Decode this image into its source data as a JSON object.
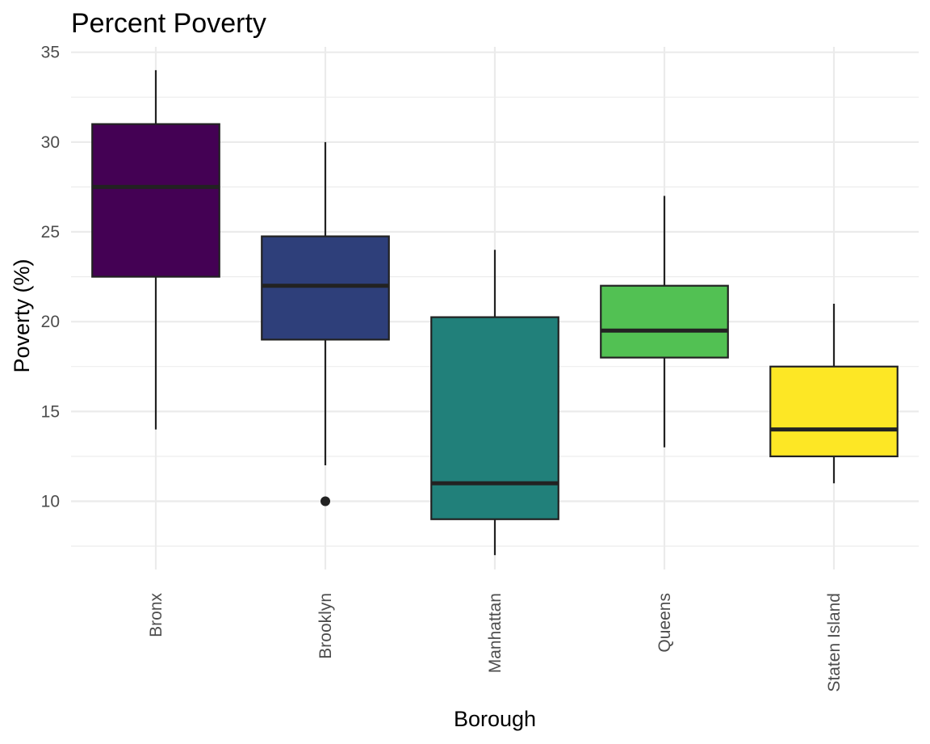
{
  "chart_data": {
    "type": "box",
    "title": "Percent Poverty",
    "xlabel": "Borough",
    "ylabel": "Poverty (%)",
    "ylim": [
      6.2,
      35.3
    ],
    "yticks": [
      10,
      15,
      20,
      25,
      30,
      35
    ],
    "grid": true,
    "categories": [
      "Bronx",
      "Brooklyn",
      "Manhattan",
      "Queens",
      "Staten Island"
    ],
    "colors": [
      "#440154",
      "#2e3f7a",
      "#21807a",
      "#52c153",
      "#fde725"
    ],
    "boxes": [
      {
        "min": 14,
        "q1": 22.5,
        "median": 27.5,
        "q3": 31,
        "max": 34,
        "outliers": []
      },
      {
        "min": 12,
        "q1": 19,
        "median": 22,
        "q3": 24.75,
        "max": 30,
        "outliers": [
          10
        ]
      },
      {
        "min": 7,
        "q1": 9,
        "median": 11,
        "q3": 20.25,
        "max": 24,
        "outliers": []
      },
      {
        "min": 13,
        "q1": 18,
        "median": 19.5,
        "q3": 22,
        "max": 27,
        "outliers": []
      },
      {
        "min": 11,
        "q1": 12.5,
        "median": 14,
        "q3": 17.5,
        "max": 21,
        "outliers": []
      }
    ]
  }
}
